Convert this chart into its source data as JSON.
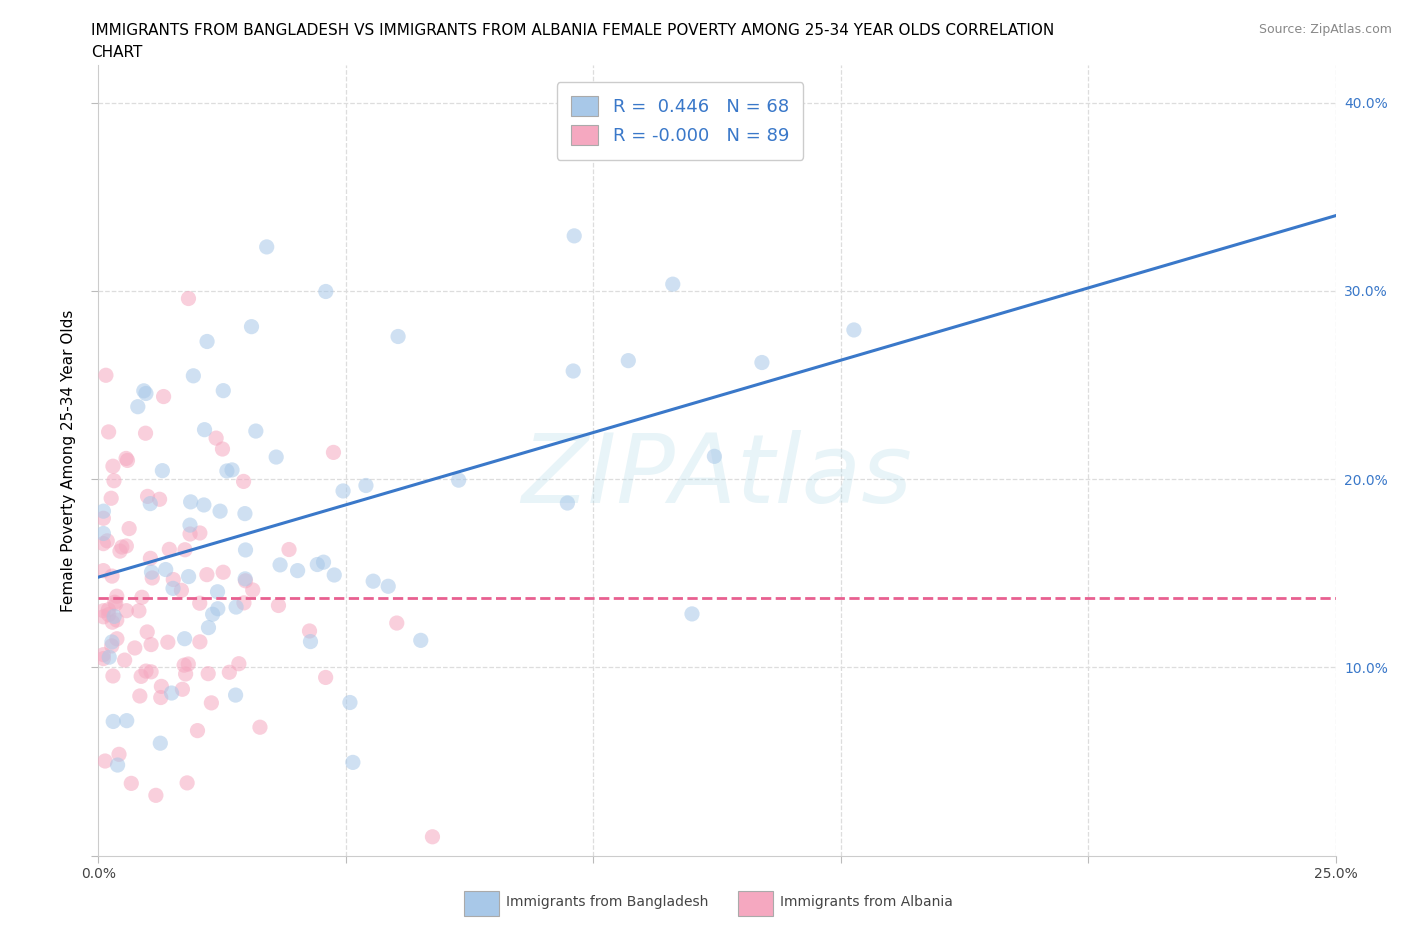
{
  "title_line1": "IMMIGRANTS FROM BANGLADESH VS IMMIGRANTS FROM ALBANIA FEMALE POVERTY AMONG 25-34 YEAR OLDS CORRELATION",
  "title_line2": "CHART",
  "source_text": "Source: ZipAtlas.com",
  "ylabel": "Female Poverty Among 25-34 Year Olds",
  "xlim": [
    0.0,
    0.25
  ],
  "ylim": [
    0.0,
    0.42
  ],
  "xticks": [
    0.0,
    0.05,
    0.1,
    0.15,
    0.2,
    0.25
  ],
  "yticks": [
    0.0,
    0.1,
    0.2,
    0.3,
    0.4
  ],
  "xticklabels_show": [
    "0.0%",
    "25.0%"
  ],
  "yticklabels_right": [
    "",
    "10.0%",
    "20.0%",
    "30.0%",
    "40.0%"
  ],
  "bangladesh_color": "#a8c8e8",
  "albania_color": "#f5a8c0",
  "regression_bangladesh_color": "#3a78c9",
  "regression_albania_color": "#e86090",
  "legend_label_bangladesh": "R =  0.446   N = 68",
  "legend_label_albania": "R = -0.000   N = 89",
  "footer_bangladesh": "Immigrants from Bangladesh",
  "footer_albania": "Immigrants from Albania",
  "R_bangladesh": 0.446,
  "N_bangladesh": 68,
  "R_albania": -0.0001,
  "N_albania": 89,
  "watermark": "ZIPAtlas",
  "background_color": "#ffffff",
  "grid_color": "#dddddd",
  "title_fontsize": 11,
  "tick_fontsize": 10,
  "legend_fontsize": 13,
  "dot_size": 120,
  "dot_alpha": 0.55
}
